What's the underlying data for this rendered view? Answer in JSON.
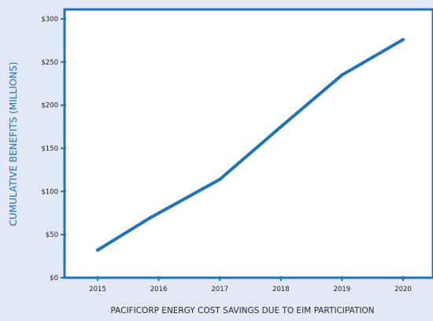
{
  "chart_data": {
    "type": "line",
    "title": "",
    "xlabel": "PACIFICORP ENERGY COST SAVINGS DUE TO EIM PARTICIPATION",
    "ylabel": "CUMULATIVE BENEFITS (MILLIONS)",
    "x_ticks": [
      "2015",
      "2016",
      "2017",
      "2018",
      "2019",
      "2020"
    ],
    "y_ticks": [
      "$0",
      "$50",
      "$100",
      "$150",
      "$200",
      "$250",
      "$300"
    ],
    "xlim": [
      2015,
      2020
    ],
    "ylim": [
      0,
      300
    ],
    "grid": false,
    "series": [
      {
        "x": [
          2015.0,
          2015.85,
          2017.0,
          2018.0,
          2019.0,
          2020.0
        ],
        "values": [
          32,
          69,
          114,
          175,
          235,
          276
        ]
      }
    ],
    "colors": {
      "line": "#1f73b7",
      "frame": "#1f73b7",
      "axis_title": "#1f73b7",
      "background": "#e2e8f5",
      "plot_background": "#ffffff"
    }
  }
}
